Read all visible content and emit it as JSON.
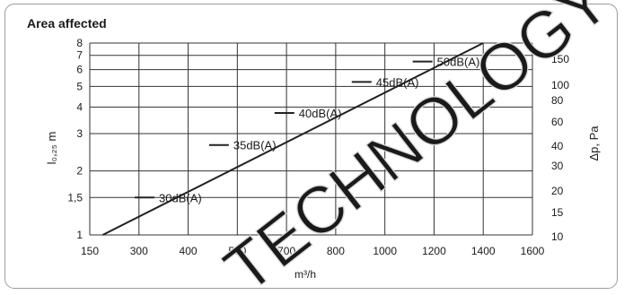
{
  "chart_data": {
    "type": "line",
    "title": "Area affected",
    "xlabel": "m³/h",
    "ylabel_left": "l₀,₂₅ m",
    "ylabel_right": "Δp, Pa",
    "x_scale": "log",
    "y_scale": "log",
    "grid": true,
    "x_ticks": [
      "150",
      "300",
      "400",
      "500",
      "700",
      "800",
      "1000",
      "1200",
      "1400",
      "1600"
    ],
    "x_tick_values": [
      150,
      300,
      400,
      500,
      700,
      800,
      1000,
      1200,
      1400,
      1600
    ],
    "y_left_ticks": [
      "1",
      "1,5",
      "2",
      "3",
      "4",
      "5",
      "6",
      "7",
      "8"
    ],
    "y_left_tick_values": [
      1,
      1.5,
      2,
      3,
      4,
      5,
      6,
      7,
      8
    ],
    "y_right_ticks": [
      "10",
      "15",
      "20",
      "30",
      "40",
      "60",
      "80",
      "100",
      "150"
    ],
    "series": [
      {
        "x": [
          180,
          1400
        ],
        "y": [
          1.0,
          8.0
        ]
      }
    ],
    "annotations": [
      {
        "label": "30dB(A)",
        "x": 310,
        "y": 1.5
      },
      {
        "label": "35dB(A)",
        "x": 460,
        "y": 2.65
      },
      {
        "label": "40dB(A)",
        "x": 690,
        "y": 3.75
      },
      {
        "label": "45dB(A)",
        "x": 900,
        "y": 5.25
      },
      {
        "label": "50dB(A)",
        "x": 1150,
        "y": 6.55
      }
    ]
  },
  "watermark_text": "TECHNOLOGY"
}
